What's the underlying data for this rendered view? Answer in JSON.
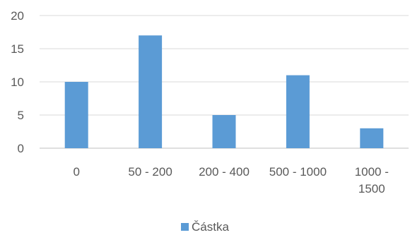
{
  "chart_data": {
    "type": "bar",
    "categories": [
      [
        "0"
      ],
      [
        "50 - 200"
      ],
      [
        "200 - 400"
      ],
      [
        "500 - 1000"
      ],
      [
        "1000 -",
        "1500"
      ]
    ],
    "series": [
      {
        "name": "Částka",
        "values": [
          10,
          17,
          5,
          11,
          3
        ],
        "color": "#5B9BD5"
      }
    ],
    "ylim": [
      0,
      20
    ],
    "yticks": [
      0,
      5,
      10,
      15,
      20
    ],
    "grid": true,
    "legend_position": "bottom"
  }
}
